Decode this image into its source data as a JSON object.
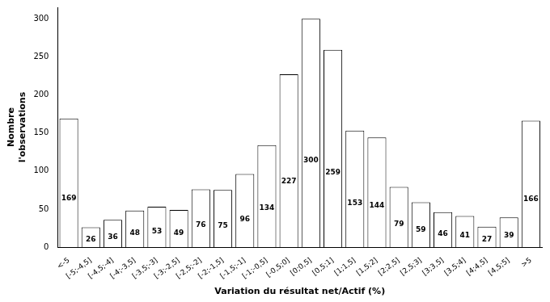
{
  "chart_data": {
    "type": "bar",
    "categories": [
      "<-5",
      "[-5;-4,5]",
      "[-4,5;-4]",
      "[-4;-3,5]",
      "[-3,5;-3]",
      "[-3;-2,5]",
      "[-2,5;-2]",
      "[-2;-1,5]",
      "[-1,5;-1]",
      "[-1;-0,5]",
      "[-0,5;0]",
      "[0;0,5]",
      "[0,5;1]",
      "[1;1,5]",
      "[1,5;2]",
      "[2;2,5]",
      "[2,5;3]",
      "[3;3,5]",
      "[3,5;4]",
      "[4;4,5]",
      "[4,5;5]",
      ">5"
    ],
    "values": [
      169,
      26,
      36,
      48,
      53,
      49,
      76,
      75,
      96,
      134,
      227,
      300,
      259,
      153,
      144,
      79,
      59,
      46,
      41,
      27,
      39,
      166
    ],
    "color": "#ffffff",
    "xlabel": "Variation du résultat net/Actif (%)",
    "ylabel": "Nombre\nl'observations",
    "ylim": [
      0,
      315
    ],
    "yticks": [
      0,
      50,
      100,
      150,
      200,
      250,
      300
    ],
    "grid": false,
    "data_labels": true
  }
}
